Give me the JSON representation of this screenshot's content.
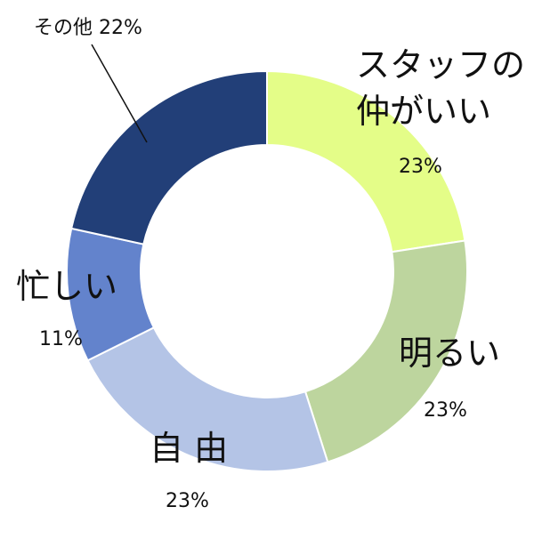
{
  "chart_data": {
    "type": "pie",
    "variant": "donut",
    "categories": [
      "スタッフの仲がいい",
      "明るい",
      "自 由",
      "忙しい",
      "その他"
    ],
    "values": [
      23,
      23,
      23,
      11,
      22
    ],
    "value_labels": [
      "23%",
      "23%",
      "23%",
      "11%",
      "22%"
    ],
    "colors": [
      "#e4fd88",
      "#bdd59e",
      "#b4c4e6",
      "#6383cc",
      "#223f78"
    ],
    "label_lines": {
      "staff": [
        "スタッフの",
        "仲がいい"
      ],
      "bright": "明るい",
      "free": "自 由",
      "busy": "忙しい",
      "other": "その他 22%"
    },
    "legend": "none",
    "start": "top",
    "direction": "clockwise"
  }
}
